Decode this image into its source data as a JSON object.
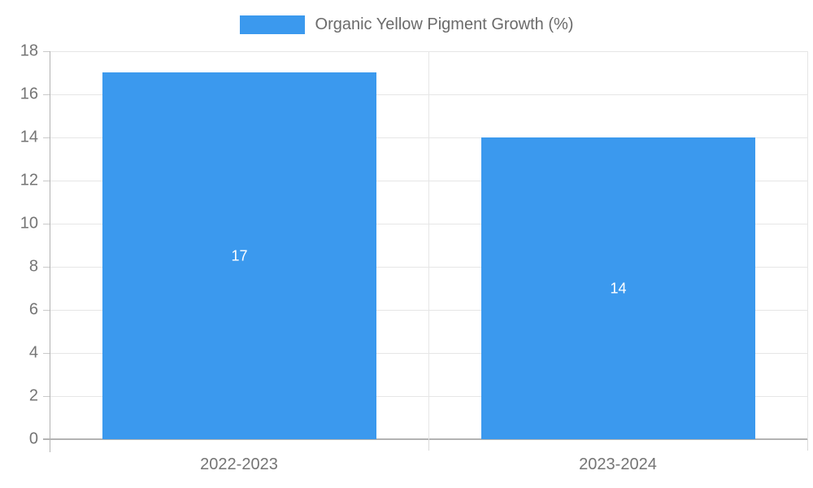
{
  "chart_data": {
    "type": "bar",
    "title": "Organic Yellow Pigment Growth (%)",
    "categories": [
      "2022-2023",
      "2023-2024"
    ],
    "values": [
      17,
      14
    ],
    "bar_labels": [
      "17",
      "14"
    ],
    "xlabel": "",
    "ylabel": "",
    "ylim": [
      0,
      18
    ],
    "ytick_step": 2,
    "ytick_labels": [
      "0",
      "2",
      "4",
      "6",
      "8",
      "10",
      "12",
      "14",
      "16",
      "18"
    ],
    "grid": "on",
    "legend_position": "top-center",
    "colors": {
      "bar": "#3b99ee",
      "gridline": "#e6e6e6",
      "axis": "#b3b3b3",
      "tick": "#c9c9c9",
      "axis_text": "#757575",
      "legend_text": "#6b6b6b",
      "value_label": "#ffffff",
      "background": "#ffffff"
    }
  }
}
